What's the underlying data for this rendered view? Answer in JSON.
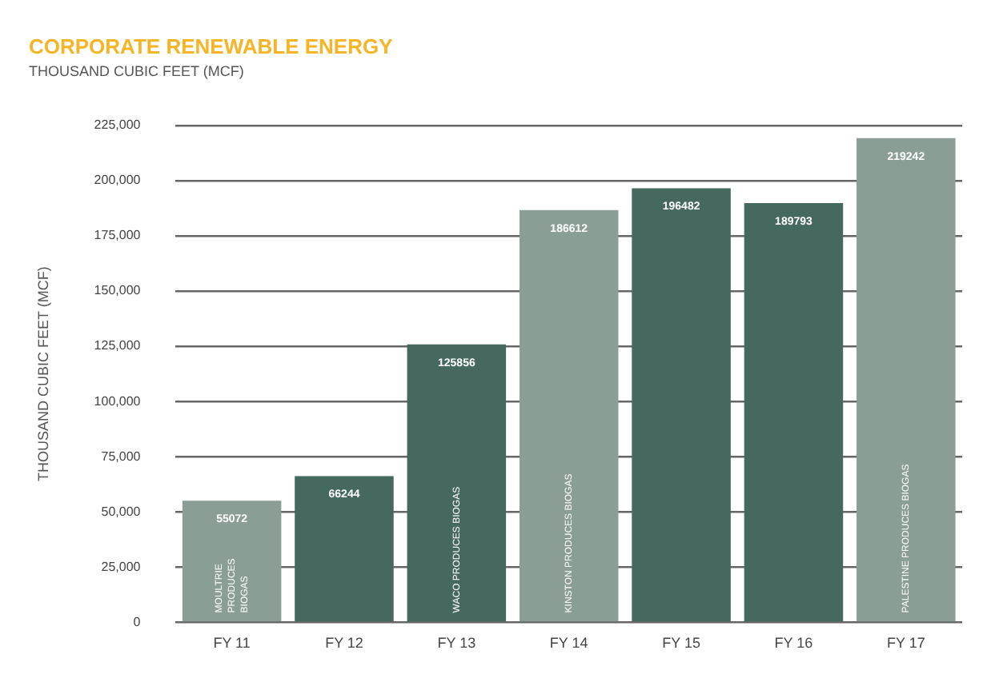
{
  "chart_data": {
    "type": "bar",
    "title": "CORPORATE RENEWABLE ENERGY",
    "subtitle": "THOUSAND CUBIC FEET (MCF)",
    "ylabel": "THOUSAND CUBIC FEET (MCF)",
    "categories": [
      "FY 11",
      "FY 12",
      "FY 13",
      "FY 14",
      "FY 15",
      "FY 16",
      "FY 17"
    ],
    "values": [
      55072,
      66244,
      125856,
      186612,
      196482,
      189793,
      219242
    ],
    "colors": [
      "#8a9e96",
      "#46695f",
      "#46695f",
      "#8a9e96",
      "#46695f",
      "#46695f",
      "#8a9e96"
    ],
    "ylim": [
      0,
      225000
    ],
    "yticks": [
      {
        "value": 0,
        "label": "0"
      },
      {
        "value": 25000,
        "label": "25,000"
      },
      {
        "value": 50000,
        "label": "50,000"
      },
      {
        "value": 75000,
        "label": "75,000"
      },
      {
        "value": 100000,
        "label": "100,000"
      },
      {
        "value": 125000,
        "label": "125,000"
      },
      {
        "value": 150000,
        "label": "150,000"
      },
      {
        "value": 175000,
        "label": "175,000"
      },
      {
        "value": 200000,
        "label": "200,000"
      },
      {
        "value": 225000,
        "label": "225,000"
      }
    ],
    "grid": "y",
    "legend": false,
    "data_labels": true,
    "annotations": [
      "MOULTRIE PRODUCES BIOGAS",
      "WACO PRODUCES BIOGAS",
      "KINSTON PRODUCES BIOGAS",
      "PALESTINE PRODUCES BIOGAS"
    ]
  }
}
